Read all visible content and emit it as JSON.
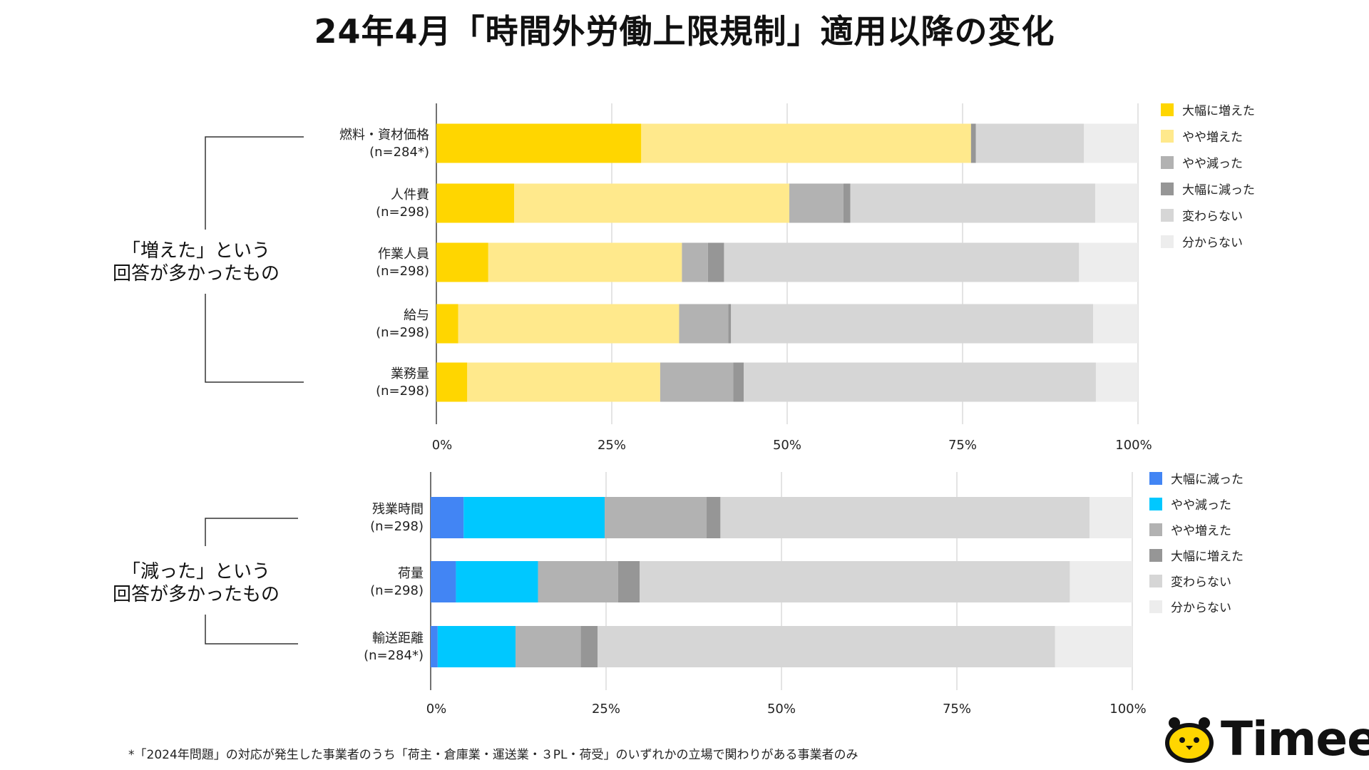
{
  "title": "24年4月「時間外労働上限規制」適用以降の変化",
  "footnote": "*「2024年問題」の対応が発生した事業者のうち「荷主・倉庫業・運送業・３PL・荷受」のいずれかの立場で関わりがある事業者のみ",
  "logo_text": "Timee",
  "chart_data": [
    {
      "type": "bar",
      "orientation": "horizontal-stacked",
      "group_label": [
        "「増えた」という",
        "回答が多かったもの"
      ],
      "categories": [
        {
          "name": "燃料・資材価格",
          "n": "(n=284*)"
        },
        {
          "name": "人件費",
          "n": "(n=298)"
        },
        {
          "name": "作業人員",
          "n": "(n=298)"
        },
        {
          "name": "給与",
          "n": "(n=298)"
        },
        {
          "name": "業務量",
          "n": "(n=298)"
        }
      ],
      "series": [
        {
          "name": "大幅に増えた",
          "color": "#FFD600",
          "values": [
            29.2,
            11.1,
            7.4,
            3.1,
            4.4
          ]
        },
        {
          "name": "やや増えた",
          "color": "#FFE98C",
          "values": [
            47.0,
            39.2,
            27.6,
            31.5,
            27.5
          ]
        },
        {
          "name": "やや減った",
          "color": "#B2B2B2",
          "values": [
            0.0,
            7.7,
            3.7,
            7.0,
            10.4
          ]
        },
        {
          "name": "大幅に減った",
          "color": "#969696",
          "values": [
            0.7,
            1.0,
            2.3,
            0.4,
            1.5
          ]
        },
        {
          "name": "変わらない",
          "color": "#D6D6D6",
          "values": [
            15.4,
            34.9,
            50.6,
            51.6,
            50.2
          ]
        },
        {
          "name": "分からない",
          "color": "#EDEDED",
          "values": [
            7.7,
            6.1,
            8.4,
            6.4,
            6.0
          ]
        }
      ],
      "xticks": [
        "0%",
        "25%",
        "50%",
        "75%",
        "100%"
      ],
      "xlim": [
        0,
        100
      ]
    },
    {
      "type": "bar",
      "orientation": "horizontal-stacked",
      "group_label": [
        "「減った」という",
        "回答が多かったもの"
      ],
      "categories": [
        {
          "name": "残業時間",
          "n": "(n=298)"
        },
        {
          "name": "荷量",
          "n": "(n=298)"
        },
        {
          "name": "輸送距離",
          "n": "(n=284*)"
        }
      ],
      "series": [
        {
          "name": "大幅に減った",
          "color": "#4285F4",
          "values": [
            4.7,
            3.6,
            1.0
          ]
        },
        {
          "name": "やや減った",
          "color": "#00C8FF",
          "values": [
            20.1,
            11.7,
            11.1
          ]
        },
        {
          "name": "やや増えた",
          "color": "#B2B2B2",
          "values": [
            14.5,
            11.4,
            9.3
          ]
        },
        {
          "name": "大幅に増えた",
          "color": "#969696",
          "values": [
            2.0,
            3.1,
            2.4
          ]
        },
        {
          "name": "変わらない",
          "color": "#D6D6D6",
          "values": [
            52.6,
            61.3,
            65.2
          ]
        },
        {
          "name": "分からない",
          "color": "#EDEDED",
          "values": [
            6.1,
            8.9,
            11.0
          ]
        }
      ],
      "xticks": [
        "0%",
        "25%",
        "50%",
        "75%",
        "100%"
      ],
      "xlim": [
        0,
        100
      ]
    }
  ]
}
